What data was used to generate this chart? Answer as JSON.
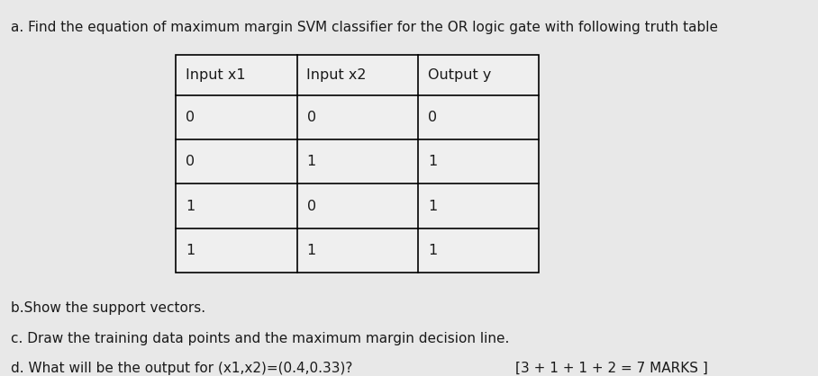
{
  "background_color": "#e8e8e8",
  "title_text": "a. Find the equation of maximum margin SVM classifier for the OR logic gate with following truth table",
  "title_fontsize": 11.0,
  "title_color": "#1a1a1a",
  "table_headers": [
    "Input x1",
    "Input x2",
    "Output y"
  ],
  "table_data": [
    [
      "0",
      "0",
      "0"
    ],
    [
      "0",
      "1",
      "1"
    ],
    [
      "1",
      "0",
      "1"
    ],
    [
      "1",
      "1",
      "1"
    ]
  ],
  "table_cell_bg": "#efefef",
  "table_text_color": "#1a1a1a",
  "table_fontsize": 11.5,
  "line_b_text": "b.Show the support vectors.",
  "line_c_text": "c. Draw the training data points and the maximum margin decision line.",
  "line_d_text": "d. What will be the output for (x1,x2)=(0.4,0.33)?",
  "line_d2_text": "[3 + 1 + 1 + 2 = 7 MARKS ]",
  "body_fontsize": 11.0,
  "body_color": "#1a1a1a"
}
